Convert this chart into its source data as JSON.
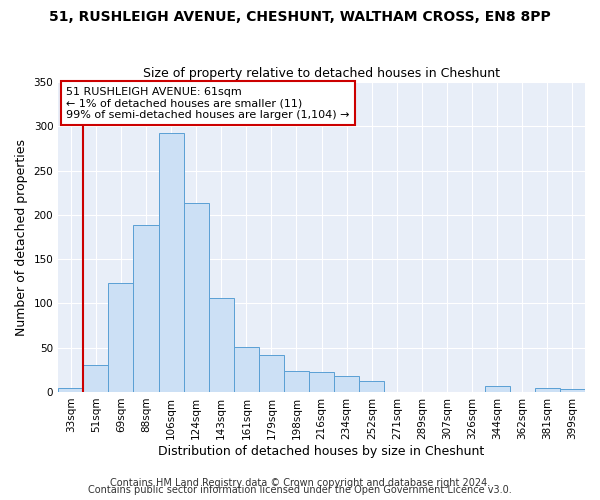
{
  "title": "51, RUSHLEIGH AVENUE, CHESHUNT, WALTHAM CROSS, EN8 8PP",
  "subtitle": "Size of property relative to detached houses in Cheshunt",
  "xlabel": "Distribution of detached houses by size in Cheshunt",
  "ylabel": "Number of detached properties",
  "bar_labels": [
    "33sqm",
    "51sqm",
    "69sqm",
    "88sqm",
    "106sqm",
    "124sqm",
    "143sqm",
    "161sqm",
    "179sqm",
    "198sqm",
    "216sqm",
    "234sqm",
    "252sqm",
    "271sqm",
    "289sqm",
    "307sqm",
    "326sqm",
    "344sqm",
    "362sqm",
    "381sqm",
    "399sqm"
  ],
  "bar_values": [
    5,
    30,
    123,
    189,
    293,
    213,
    106,
    51,
    42,
    24,
    22,
    18,
    12,
    0,
    0,
    0,
    0,
    7,
    0,
    5,
    3
  ],
  "bar_color": "#cce0f5",
  "bar_edge_color": "#5a9fd4",
  "red_line_index": 1,
  "annotation_text": "51 RUSHLEIGH AVENUE: 61sqm\n← 1% of detached houses are smaller (11)\n99% of semi-detached houses are larger (1,104) →",
  "annotation_box_color": "#ffffff",
  "annotation_box_edge": "#cc0000",
  "red_line_color": "#cc0000",
  "ylim": [
    0,
    350
  ],
  "yticks": [
    0,
    50,
    100,
    150,
    200,
    250,
    300,
    350
  ],
  "footer1": "Contains HM Land Registry data © Crown copyright and database right 2024.",
  "footer2": "Contains public sector information licensed under the Open Government Licence v3.0.",
  "bg_color": "#ffffff",
  "plot_bg_color": "#e8eef8",
  "title_fontsize": 10,
  "subtitle_fontsize": 9,
  "axis_label_fontsize": 9,
  "tick_fontsize": 7.5,
  "footer_fontsize": 7,
  "annotation_fontsize": 8
}
